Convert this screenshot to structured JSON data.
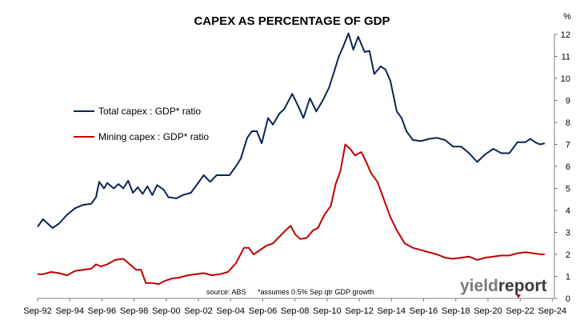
{
  "chart_data": {
    "type": "line",
    "title": "CAPEX AS PERCENTAGE OF GDP",
    "yunit": "%",
    "ylim": [
      0,
      12
    ],
    "yticks": [
      "0",
      "1",
      "2",
      "3",
      "4",
      "5",
      "6",
      "7",
      "8",
      "9",
      "10",
      "11",
      "12"
    ],
    "xlim": [
      1992.67,
      2024.8
    ],
    "xticks": [
      "Sep-92",
      "Sep-94",
      "Sep-96",
      "Sep-98",
      "Sep-00",
      "Sep-02",
      "Sep-04",
      "Sep-06",
      "Sep-08",
      "Sep-10",
      "Sep-12",
      "Sep-14",
      "Sep-16",
      "Sep-18",
      "Sep-20",
      "Sep-22",
      "Sep-24"
    ],
    "legend_position": "upper-left",
    "grid": false,
    "series": [
      {
        "name": "Total capex : GDP* ratio",
        "color": "#0c2454",
        "points": [
          [
            1992.67,
            3.25
          ],
          [
            1993.0,
            3.6
          ],
          [
            1993.3,
            3.4
          ],
          [
            1993.6,
            3.2
          ],
          [
            1994.0,
            3.4
          ],
          [
            1994.5,
            3.8
          ],
          [
            1995.0,
            4.1
          ],
          [
            1995.5,
            4.25
          ],
          [
            1996.0,
            4.3
          ],
          [
            1996.3,
            4.6
          ],
          [
            1996.5,
            5.3
          ],
          [
            1996.8,
            5.0
          ],
          [
            1997.0,
            5.25
          ],
          [
            1997.4,
            5.0
          ],
          [
            1997.7,
            5.2
          ],
          [
            1998.0,
            5.0
          ],
          [
            1998.3,
            5.35
          ],
          [
            1998.6,
            4.8
          ],
          [
            1998.9,
            5.05
          ],
          [
            1999.2,
            4.75
          ],
          [
            1999.5,
            5.1
          ],
          [
            1999.8,
            4.7
          ],
          [
            2000.1,
            5.15
          ],
          [
            2000.5,
            4.95
          ],
          [
            2000.8,
            4.6
          ],
          [
            2001.3,
            4.55
          ],
          [
            2001.7,
            4.7
          ],
          [
            2002.2,
            4.8
          ],
          [
            2002.6,
            5.2
          ],
          [
            2003.0,
            5.6
          ],
          [
            2003.4,
            5.3
          ],
          [
            2003.8,
            5.6
          ],
          [
            2004.2,
            5.6
          ],
          [
            2004.6,
            5.6
          ],
          [
            2005.0,
            6.0
          ],
          [
            2005.3,
            6.35
          ],
          [
            2005.7,
            7.3
          ],
          [
            2006.0,
            7.6
          ],
          [
            2006.3,
            7.6
          ],
          [
            2006.6,
            7.05
          ],
          [
            2007.0,
            8.2
          ],
          [
            2007.3,
            7.9
          ],
          [
            2007.7,
            8.4
          ],
          [
            2008.0,
            8.6
          ],
          [
            2008.5,
            9.3
          ],
          [
            2008.9,
            8.7
          ],
          [
            2009.2,
            8.2
          ],
          [
            2009.6,
            9.1
          ],
          [
            2010.0,
            8.5
          ],
          [
            2010.4,
            9.0
          ],
          [
            2010.8,
            9.6
          ],
          [
            2011.1,
            10.3
          ],
          [
            2011.4,
            11.0
          ],
          [
            2011.7,
            11.5
          ],
          [
            2012.0,
            12.05
          ],
          [
            2012.3,
            11.3
          ],
          [
            2012.6,
            11.9
          ],
          [
            2013.0,
            11.2
          ],
          [
            2013.3,
            11.25
          ],
          [
            2013.6,
            10.2
          ],
          [
            2014.0,
            10.55
          ],
          [
            2014.3,
            10.4
          ],
          [
            2014.6,
            9.9
          ],
          [
            2015.0,
            8.5
          ],
          [
            2015.3,
            8.2
          ],
          [
            2015.6,
            7.6
          ],
          [
            2016.0,
            7.2
          ],
          [
            2016.5,
            7.15
          ],
          [
            2017.0,
            7.25
          ],
          [
            2017.5,
            7.3
          ],
          [
            2018.0,
            7.2
          ],
          [
            2018.5,
            6.9
          ],
          [
            2019.0,
            6.9
          ],
          [
            2019.5,
            6.6
          ],
          [
            2020.0,
            6.2
          ],
          [
            2020.5,
            6.55
          ],
          [
            2021.0,
            6.8
          ],
          [
            2021.5,
            6.6
          ],
          [
            2022.0,
            6.6
          ],
          [
            2022.5,
            7.1
          ],
          [
            2023.0,
            7.1
          ],
          [
            2023.3,
            7.25
          ],
          [
            2023.6,
            7.1
          ],
          [
            2023.9,
            7.0
          ],
          [
            2024.2,
            7.05
          ]
        ]
      },
      {
        "name": "Mining capex : GDP* ratio",
        "color": "#c00000",
        "points": [
          [
            1992.67,
            1.1
          ],
          [
            1993.0,
            1.1
          ],
          [
            1993.5,
            1.2
          ],
          [
            1994.0,
            1.15
          ],
          [
            1994.5,
            1.05
          ],
          [
            1995.0,
            1.25
          ],
          [
            1995.5,
            1.3
          ],
          [
            1996.0,
            1.35
          ],
          [
            1996.3,
            1.55
          ],
          [
            1996.6,
            1.45
          ],
          [
            1997.0,
            1.55
          ],
          [
            1997.5,
            1.75
          ],
          [
            1998.0,
            1.8
          ],
          [
            1998.4,
            1.55
          ],
          [
            1998.8,
            1.3
          ],
          [
            1999.1,
            1.3
          ],
          [
            1999.4,
            0.7
          ],
          [
            1999.8,
            0.7
          ],
          [
            2000.2,
            0.65
          ],
          [
            2000.6,
            0.8
          ],
          [
            2001.0,
            0.9
          ],
          [
            2001.5,
            0.95
          ],
          [
            2002.0,
            1.05
          ],
          [
            2002.5,
            1.1
          ],
          [
            2003.0,
            1.15
          ],
          [
            2003.5,
            1.05
          ],
          [
            2004.0,
            1.1
          ],
          [
            2004.5,
            1.2
          ],
          [
            2005.0,
            1.6
          ],
          [
            2005.5,
            2.3
          ],
          [
            2005.8,
            2.3
          ],
          [
            2006.1,
            2.0
          ],
          [
            2006.5,
            2.2
          ],
          [
            2006.9,
            2.4
          ],
          [
            2007.3,
            2.5
          ],
          [
            2007.7,
            2.8
          ],
          [
            2008.1,
            3.1
          ],
          [
            2008.4,
            3.3
          ],
          [
            2008.7,
            2.9
          ],
          [
            2009.0,
            2.7
          ],
          [
            2009.4,
            2.75
          ],
          [
            2009.8,
            3.1
          ],
          [
            2010.1,
            3.2
          ],
          [
            2010.5,
            3.8
          ],
          [
            2010.9,
            4.2
          ],
          [
            2011.2,
            5.2
          ],
          [
            2011.5,
            5.8
          ],
          [
            2011.8,
            7.0
          ],
          [
            2012.1,
            6.8
          ],
          [
            2012.4,
            6.5
          ],
          [
            2012.8,
            6.65
          ],
          [
            2013.1,
            6.2
          ],
          [
            2013.4,
            5.7
          ],
          [
            2013.8,
            5.3
          ],
          [
            2014.2,
            4.5
          ],
          [
            2014.6,
            3.7
          ],
          [
            2015.0,
            3.1
          ],
          [
            2015.5,
            2.5
          ],
          [
            2016.0,
            2.3
          ],
          [
            2016.5,
            2.2
          ],
          [
            2017.0,
            2.1
          ],
          [
            2017.5,
            2.0
          ],
          [
            2018.0,
            1.85
          ],
          [
            2018.5,
            1.8
          ],
          [
            2019.0,
            1.85
          ],
          [
            2019.5,
            1.9
          ],
          [
            2020.0,
            1.75
          ],
          [
            2020.5,
            1.85
          ],
          [
            2021.0,
            1.9
          ],
          [
            2021.5,
            1.95
          ],
          [
            2022.0,
            1.95
          ],
          [
            2022.5,
            2.05
          ],
          [
            2023.0,
            2.1
          ],
          [
            2023.5,
            2.05
          ],
          [
            2024.0,
            2.0
          ],
          [
            2024.2,
            2.0
          ]
        ]
      }
    ],
    "annotations": {
      "source": "source: ABS",
      "footnote": "*assumes 0.5% Sep qtr GDP growth"
    },
    "logo": {
      "part1": "yield",
      "part2": "report",
      "color1": "#7a7a7a",
      "color2": "#3a3a3a",
      "accent": "#c00000"
    }
  }
}
